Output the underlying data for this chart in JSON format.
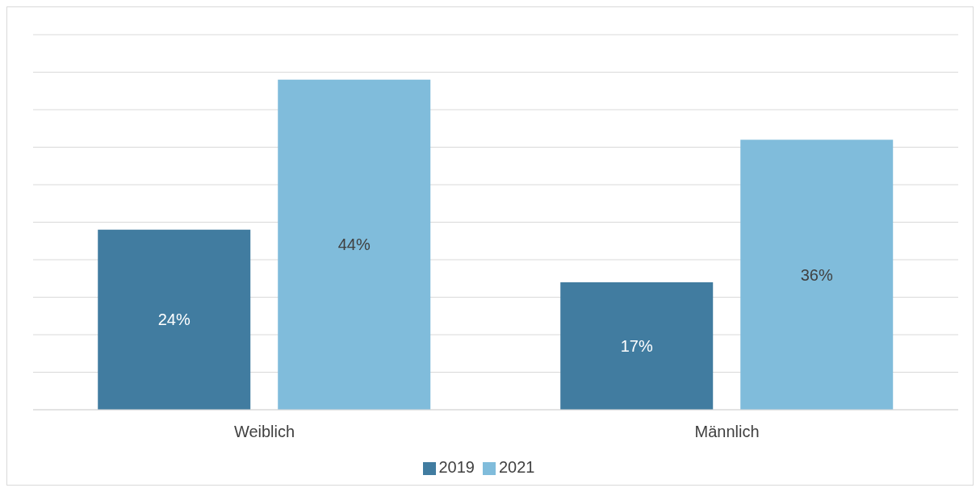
{
  "chart_data": {
    "type": "bar",
    "categories": [
      "Weiblich",
      "Männlich"
    ],
    "series": [
      {
        "name": "2019",
        "color": "#417ca0",
        "values": [
          24,
          17
        ],
        "value_labels": [
          "24%",
          "17%"
        ]
      },
      {
        "name": "2021",
        "color": "#80bcdb",
        "values": [
          44,
          36
        ],
        "value_labels": [
          "44%",
          "36%"
        ]
      }
    ],
    "grid": "y",
    "legend": "bottom",
    "tick_labels": "x"
  }
}
